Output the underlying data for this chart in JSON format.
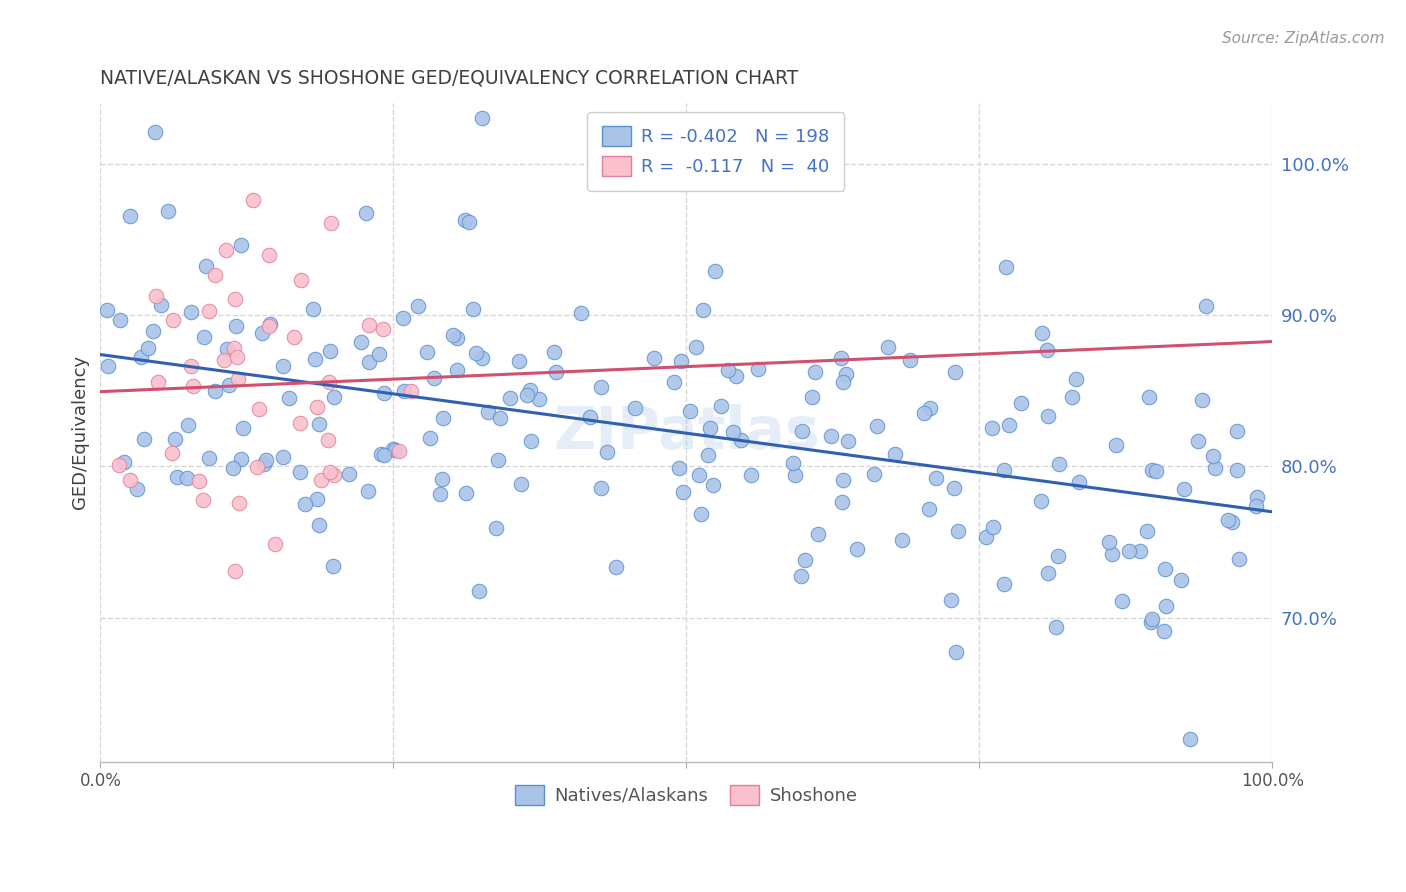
{
  "title": "NATIVE/ALASKAN VS SHOSHONE GED/EQUIVALENCY CORRELATION CHART",
  "source": "Source: ZipAtlas.com",
  "ylabel": "GED/Equivalency",
  "legend_blue_label": "Natives/Alaskans",
  "legend_pink_label": "Shoshone",
  "legend_line1": "R = -0.402   N = 198",
  "legend_line2": "R =  -0.117   N =  40",
  "blue_face_color": "#aac4e8",
  "blue_edge_color": "#5b8fd4",
  "blue_line_color": "#3060b0",
  "pink_face_color": "#f9c0ce",
  "pink_edge_color": "#e0809a",
  "pink_line_color": "#d05070",
  "title_color": "#404040",
  "source_color": "#999999",
  "legend_text_color": "#4472c4",
  "grid_color": "#d8d8d8",
  "background_color": "#ffffff",
  "x_min": 0.0,
  "x_max": 100.0,
  "y_min": 60.5,
  "y_max": 104.0,
  "y_ticks_vals": [
    70.0,
    80.0,
    90.0,
    100.0
  ],
  "seed_blue": 42,
  "seed_pink": 123
}
